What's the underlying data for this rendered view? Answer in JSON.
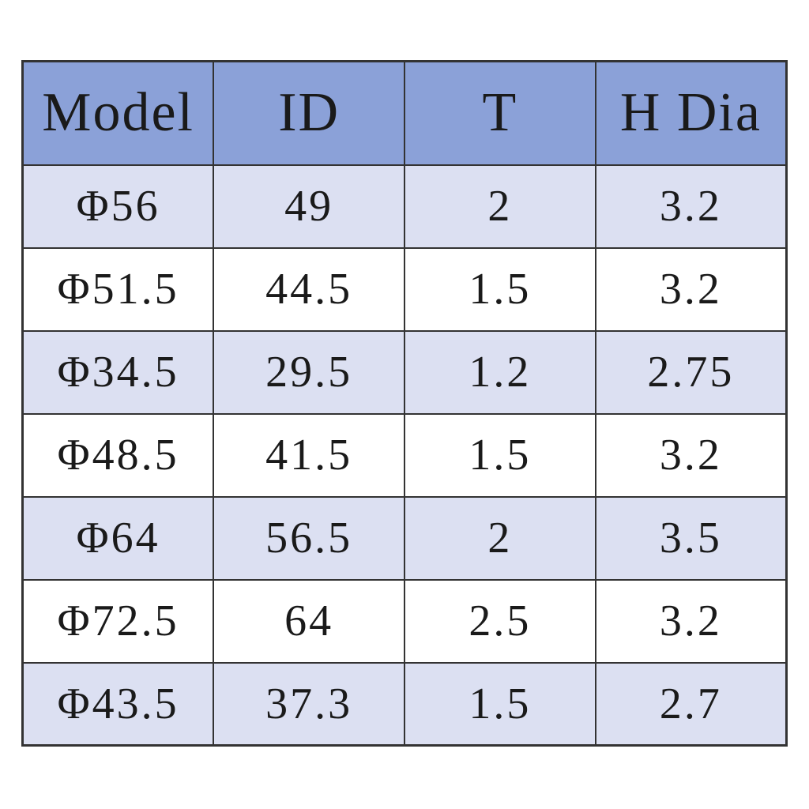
{
  "chart_data": {
    "type": "table",
    "columns": [
      "Model",
      "ID",
      "T",
      "H Dia"
    ],
    "rows": [
      [
        "Φ56",
        "49",
        "2",
        "3.2"
      ],
      [
        "Φ51.5",
        "44.5",
        "1.5",
        "3.2"
      ],
      [
        "Φ34.5",
        "29.5",
        "1.2",
        "2.75"
      ],
      [
        "Φ48.5",
        "41.5",
        "1.5",
        "3.2"
      ],
      [
        "Φ64",
        "56.5",
        "2",
        "3.5"
      ],
      [
        "Φ72.5",
        "64",
        "2.5",
        "3.2"
      ],
      [
        "Φ43.5",
        "37.3",
        "1.5",
        "2.7"
      ]
    ]
  },
  "colors": {
    "header_bg": "#8ba1d8",
    "alt_row_bg": "#dce0f2",
    "row_bg": "#ffffff",
    "border": "#333333",
    "text": "#1a1a1a",
    "page_bg": "#ffffff"
  }
}
